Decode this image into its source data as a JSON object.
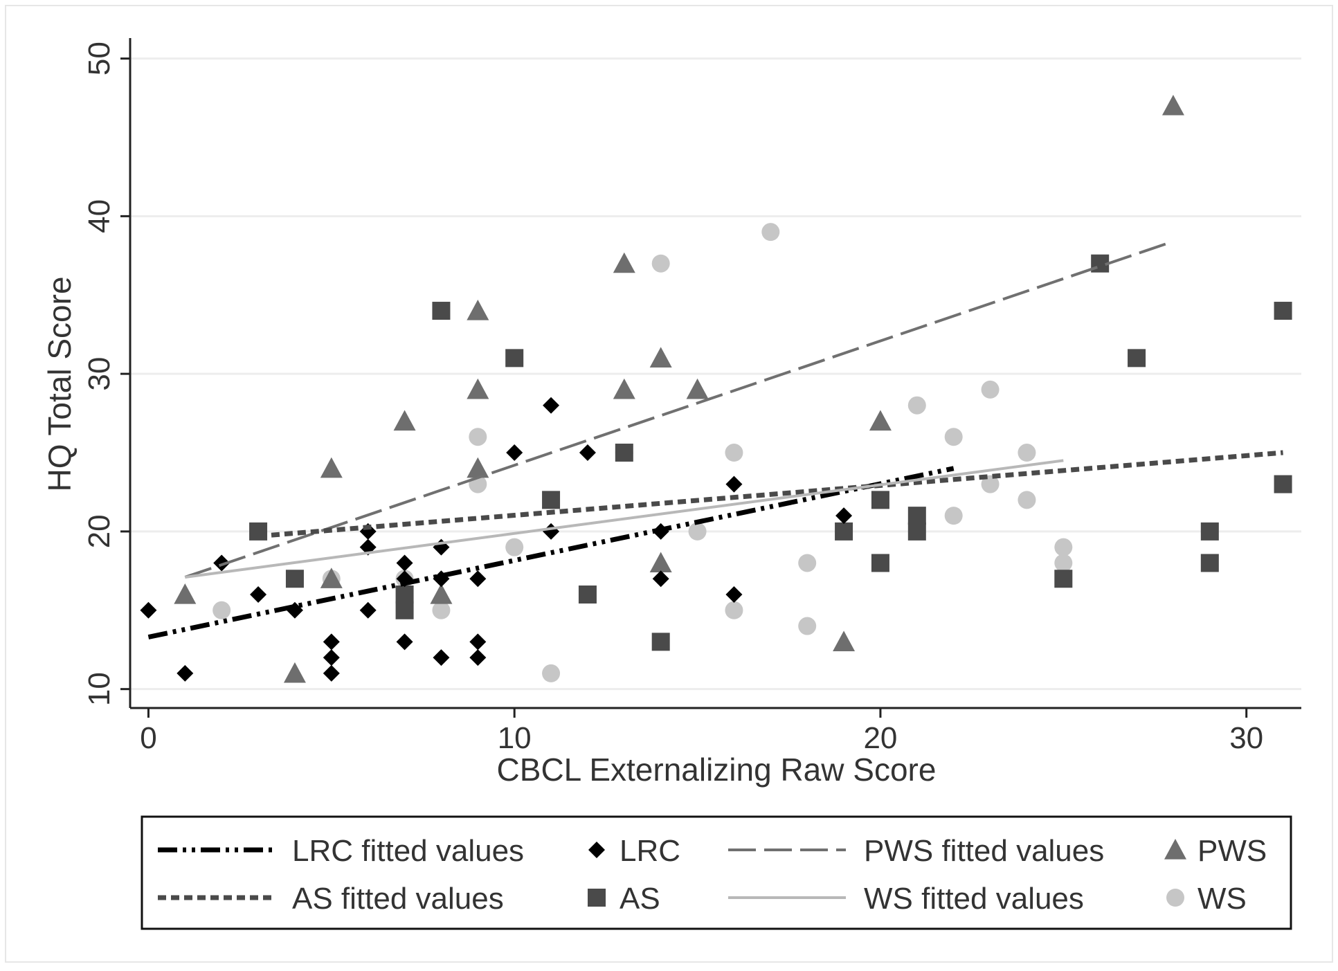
{
  "chart_data": {
    "type": "scatter",
    "xlabel": "CBCL Externalizing Raw Score",
    "ylabel": "HQ Total Score",
    "xlim": [
      -0.5,
      31.5
    ],
    "ylim": [
      8.8,
      51.3
    ],
    "xticks": [
      0,
      10,
      20,
      30
    ],
    "yticks": [
      10,
      20,
      30,
      40,
      50
    ],
    "xtick_labels": [
      "0",
      "10",
      "20",
      "30"
    ],
    "ytick_labels": [
      "10",
      "20",
      "30",
      "40",
      "50"
    ],
    "grid": "horizontal",
    "legend_position": "bottom",
    "colors": {
      "background": "#ffffff",
      "plot_background": "#ffffff",
      "grid": "#ededed",
      "LRC": "#000000",
      "AS": "#4a4a4a",
      "PWS": "#6e6e6e",
      "WS": "#c6c6c6",
      "LRC_line": "#000000",
      "AS_line": "#4a4a4a",
      "PWS_line": "#707070",
      "WS_line": "#b8b8b8"
    },
    "legend": [
      {
        "label": "LRC fitted values",
        "kind": "line",
        "series": "LRC"
      },
      {
        "label": "LRC",
        "kind": "marker",
        "series": "LRC"
      },
      {
        "label": "PWS fitted values",
        "kind": "line",
        "series": "PWS"
      },
      {
        "label": "PWS",
        "kind": "marker",
        "series": "PWS"
      },
      {
        "label": "AS fitted values",
        "kind": "line",
        "series": "AS"
      },
      {
        "label": "AS",
        "kind": "marker",
        "series": "AS"
      },
      {
        "label": "WS fitted values",
        "kind": "line",
        "series": "WS"
      },
      {
        "label": "WS",
        "kind": "marker",
        "series": "WS"
      }
    ],
    "series": [
      {
        "name": "LRC",
        "marker": "diamond",
        "x": [
          0,
          1,
          2,
          3,
          4,
          5,
          5,
          5,
          6,
          6,
          6,
          7,
          7,
          7,
          8,
          8,
          8,
          9,
          9,
          9,
          10,
          11,
          11,
          12,
          14,
          14,
          16,
          16,
          19
        ],
        "y": [
          15,
          11,
          18,
          16,
          15,
          13,
          12,
          11,
          20,
          19,
          15,
          18,
          17,
          13,
          19,
          17,
          12,
          17,
          13,
          12,
          25,
          28,
          20,
          25,
          20,
          17,
          23,
          16,
          21
        ]
      },
      {
        "name": "AS",
        "marker": "square",
        "x": [
          3,
          4,
          7,
          7,
          8,
          10,
          11,
          12,
          13,
          14,
          19,
          20,
          20,
          21,
          21,
          25,
          26,
          27,
          29,
          29,
          31,
          31
        ],
        "y": [
          20,
          17,
          16,
          15,
          34,
          31,
          22,
          16,
          25,
          13,
          20,
          22,
          18,
          21,
          20,
          17,
          37,
          31,
          20,
          18,
          34,
          23
        ]
      },
      {
        "name": "PWS",
        "marker": "triangle",
        "x": [
          1,
          4,
          5,
          5,
          7,
          8,
          9,
          9,
          9,
          13,
          13,
          14,
          14,
          15,
          19,
          20,
          28
        ],
        "y": [
          16,
          11,
          24,
          17,
          27,
          16,
          34,
          29,
          24,
          37,
          29,
          31,
          18,
          29,
          13,
          27,
          47
        ]
      },
      {
        "name": "WS",
        "marker": "circle",
        "x": [
          2,
          5,
          7,
          8,
          9,
          9,
          10,
          11,
          13,
          14,
          15,
          16,
          16,
          17,
          18,
          18,
          21,
          22,
          22,
          23,
          23,
          24,
          24,
          25,
          25
        ],
        "y": [
          15,
          17,
          17,
          15,
          26,
          23,
          19,
          11,
          25,
          37,
          20,
          25,
          15,
          39,
          18,
          14,
          28,
          26,
          21,
          29,
          23,
          25,
          22,
          19,
          18
        ]
      }
    ],
    "fitted_lines": [
      {
        "name": "LRC fitted values",
        "series": "LRC",
        "style": "dash-dot-dot",
        "x": [
          0,
          22
        ],
        "y": [
          13.3,
          24.0
        ]
      },
      {
        "name": "PWS fitted values",
        "series": "PWS",
        "style": "long-dash",
        "x": [
          1,
          28
        ],
        "y": [
          17.1,
          38.4
        ]
      },
      {
        "name": "AS fitted values",
        "series": "AS",
        "style": "short-dash",
        "x": [
          3,
          31
        ],
        "y": [
          19.7,
          25.0
        ]
      },
      {
        "name": "WS fitted values",
        "series": "WS",
        "style": "solid",
        "x": [
          1,
          25
        ],
        "y": [
          17.1,
          24.5
        ]
      }
    ]
  }
}
